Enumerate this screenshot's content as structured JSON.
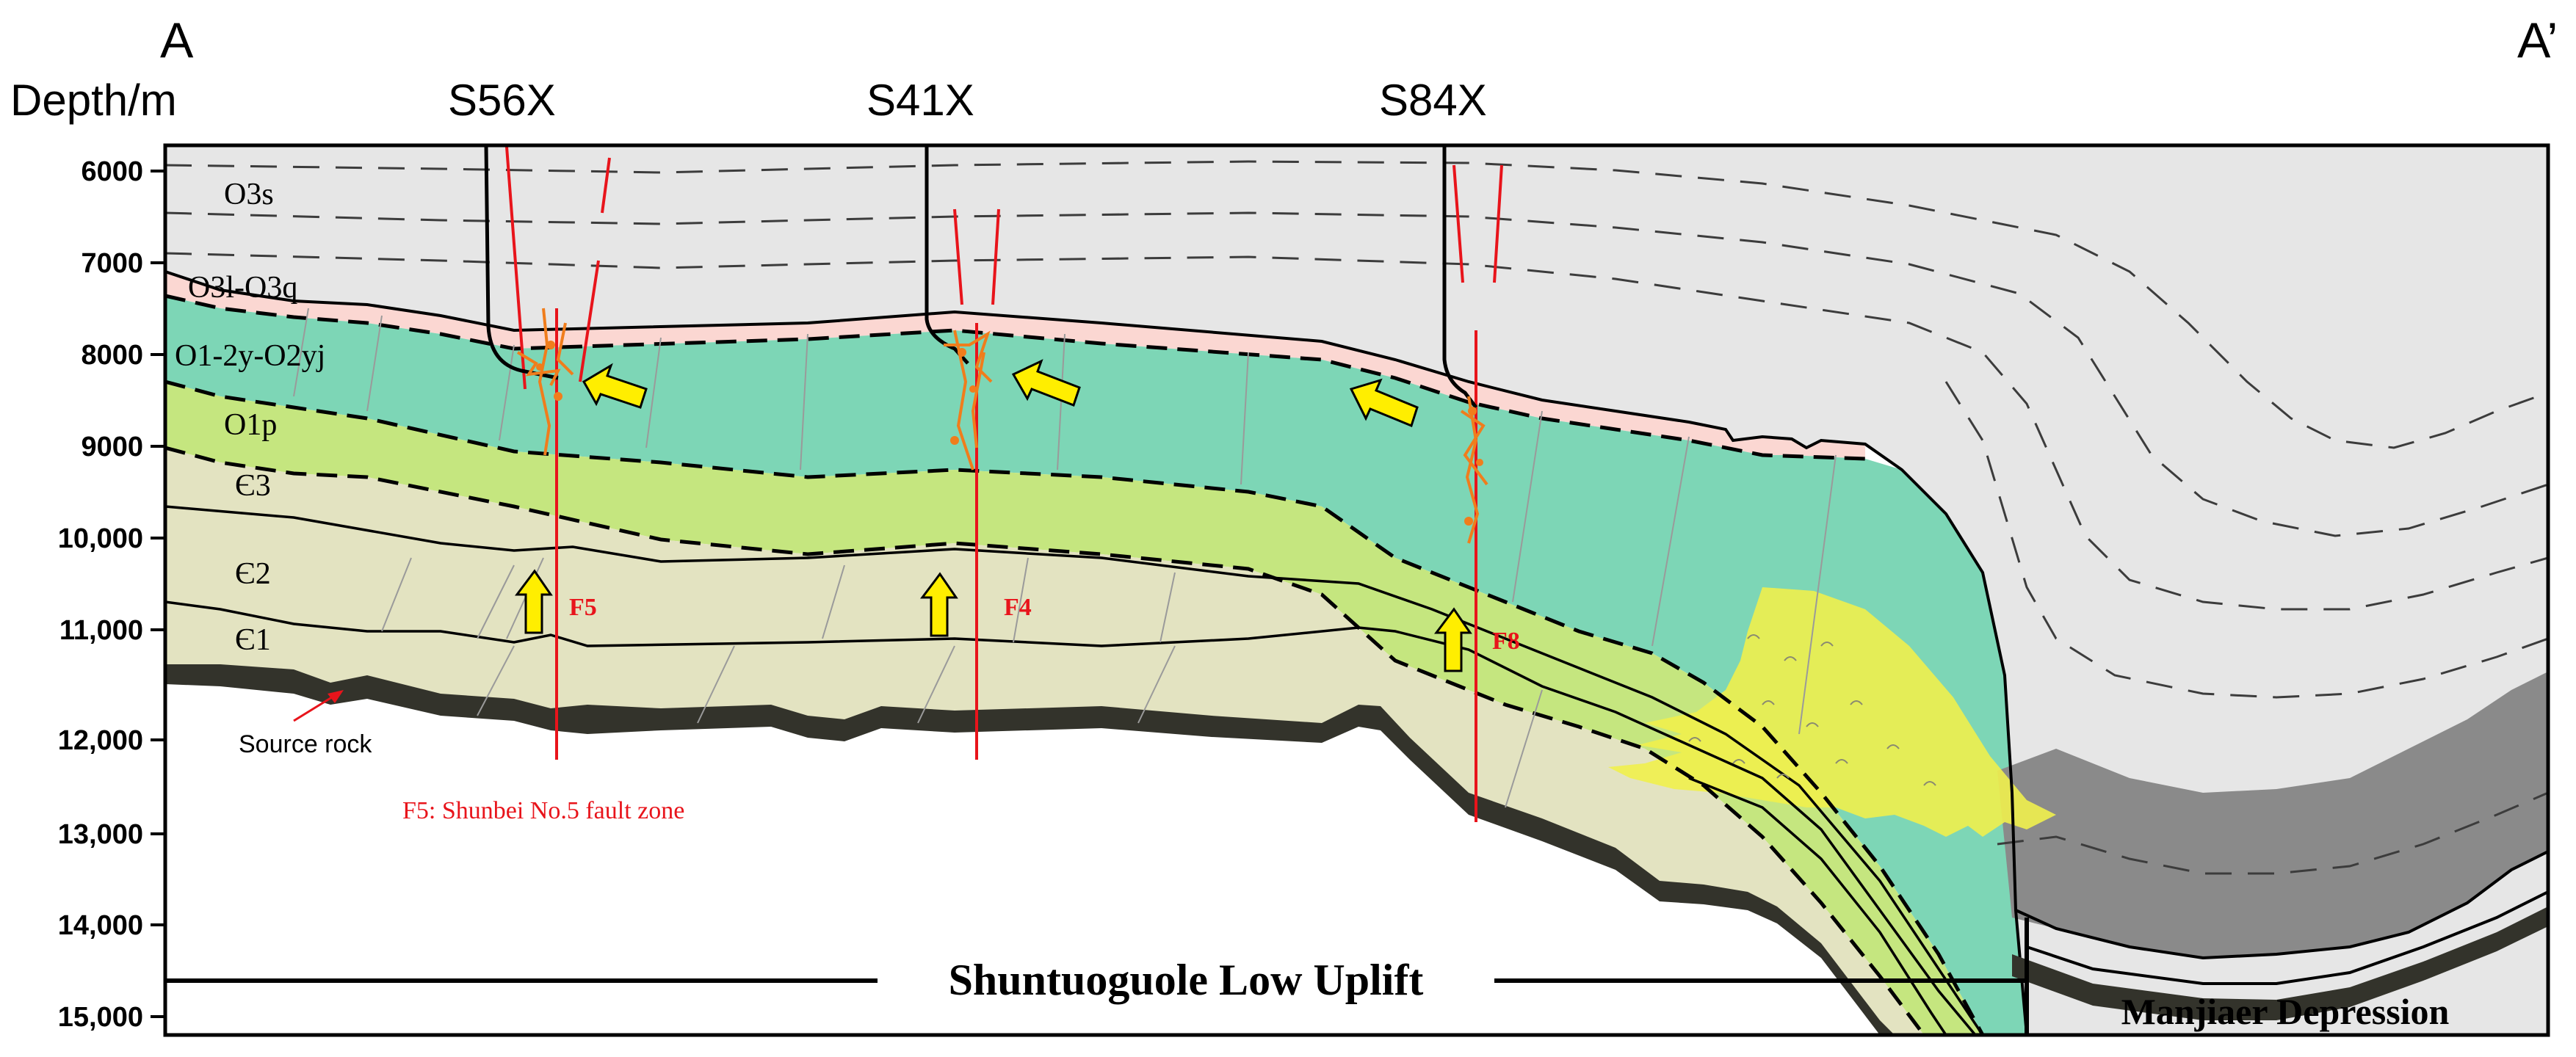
{
  "section": {
    "start_label": "A",
    "end_label": "A’",
    "depth_axis_title": "Depth/m",
    "depth_ticks": [
      "6000",
      "7000",
      "8000",
      "9000",
      "10,000",
      "11,000",
      "12,000",
      "13,000",
      "14,000",
      "15,000"
    ]
  },
  "wells": [
    "S56X",
    "S41X",
    "S84X"
  ],
  "formations": {
    "o3s": "O3s",
    "o3l_o3q": "O3l-O3q",
    "o1_2y_o2yj": "O1-2y-O2yj",
    "o1p": "O1p",
    "c3": "Є3",
    "c2": "Є2",
    "c1": "Є1"
  },
  "faults": [
    "F5",
    "F4",
    "F8"
  ],
  "annotations": {
    "source_rock": "Source rock",
    "fault_note": "F5: Shunbei No.5 fault zone"
  },
  "regions": {
    "uplift": "Shuntuoguole Low Uplift",
    "depression": "Manjiaer Depression"
  },
  "colors": {
    "upper_ordovician": "#e6e6e6",
    "o3l_o3q": "#fbd7d2",
    "o1_2y_o2yj": "#7dd6b6",
    "o1p": "#c5e67f",
    "cambrian": "#e3e3c1",
    "source_rock": "#33332b",
    "fault": "#e8141b",
    "migration_arrow": "#ffee00",
    "hydrocarbon": "#f07d1c",
    "sand_fan": "#f0ef4c",
    "depression_gray": "#8a8a8a"
  }
}
